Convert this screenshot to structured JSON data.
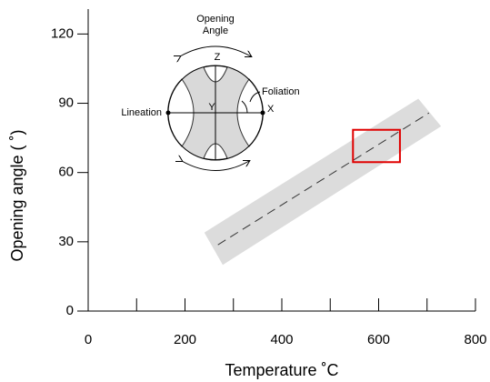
{
  "chart_data": {
    "type": "line",
    "xlabel": "Temperature ˚C",
    "ylabel": "Opening angle ( ˚)",
    "xlim": [
      0,
      800
    ],
    "ylim": [
      0,
      130
    ],
    "xticks": [
      0,
      200,
      400,
      600,
      800
    ],
    "xminorticks": [
      100,
      300,
      500,
      700
    ],
    "yticks": [
      0,
      30,
      60,
      90,
      120
    ],
    "series": [
      {
        "x": [
          268,
          704
        ],
        "values": [
          28.7,
          85.8
        ],
        "color": "#333333",
        "dashed": true
      }
    ],
    "band": {
      "x": [
        240,
        682,
        729,
        278
      ],
      "y": [
        34,
        92,
        80,
        20
      ],
      "color": "#dcdcdc"
    },
    "highlight": {
      "x": [
        547,
        644
      ],
      "y": [
        64.5,
        78.5
      ],
      "color": "#e00000"
    },
    "inset_labels": {
      "opening_angle": [
        "Opening",
        "Angle"
      ],
      "z": "Z",
      "y": "Y",
      "x": "X",
      "lineation": "Lineation",
      "foliation": "Foliation"
    }
  }
}
